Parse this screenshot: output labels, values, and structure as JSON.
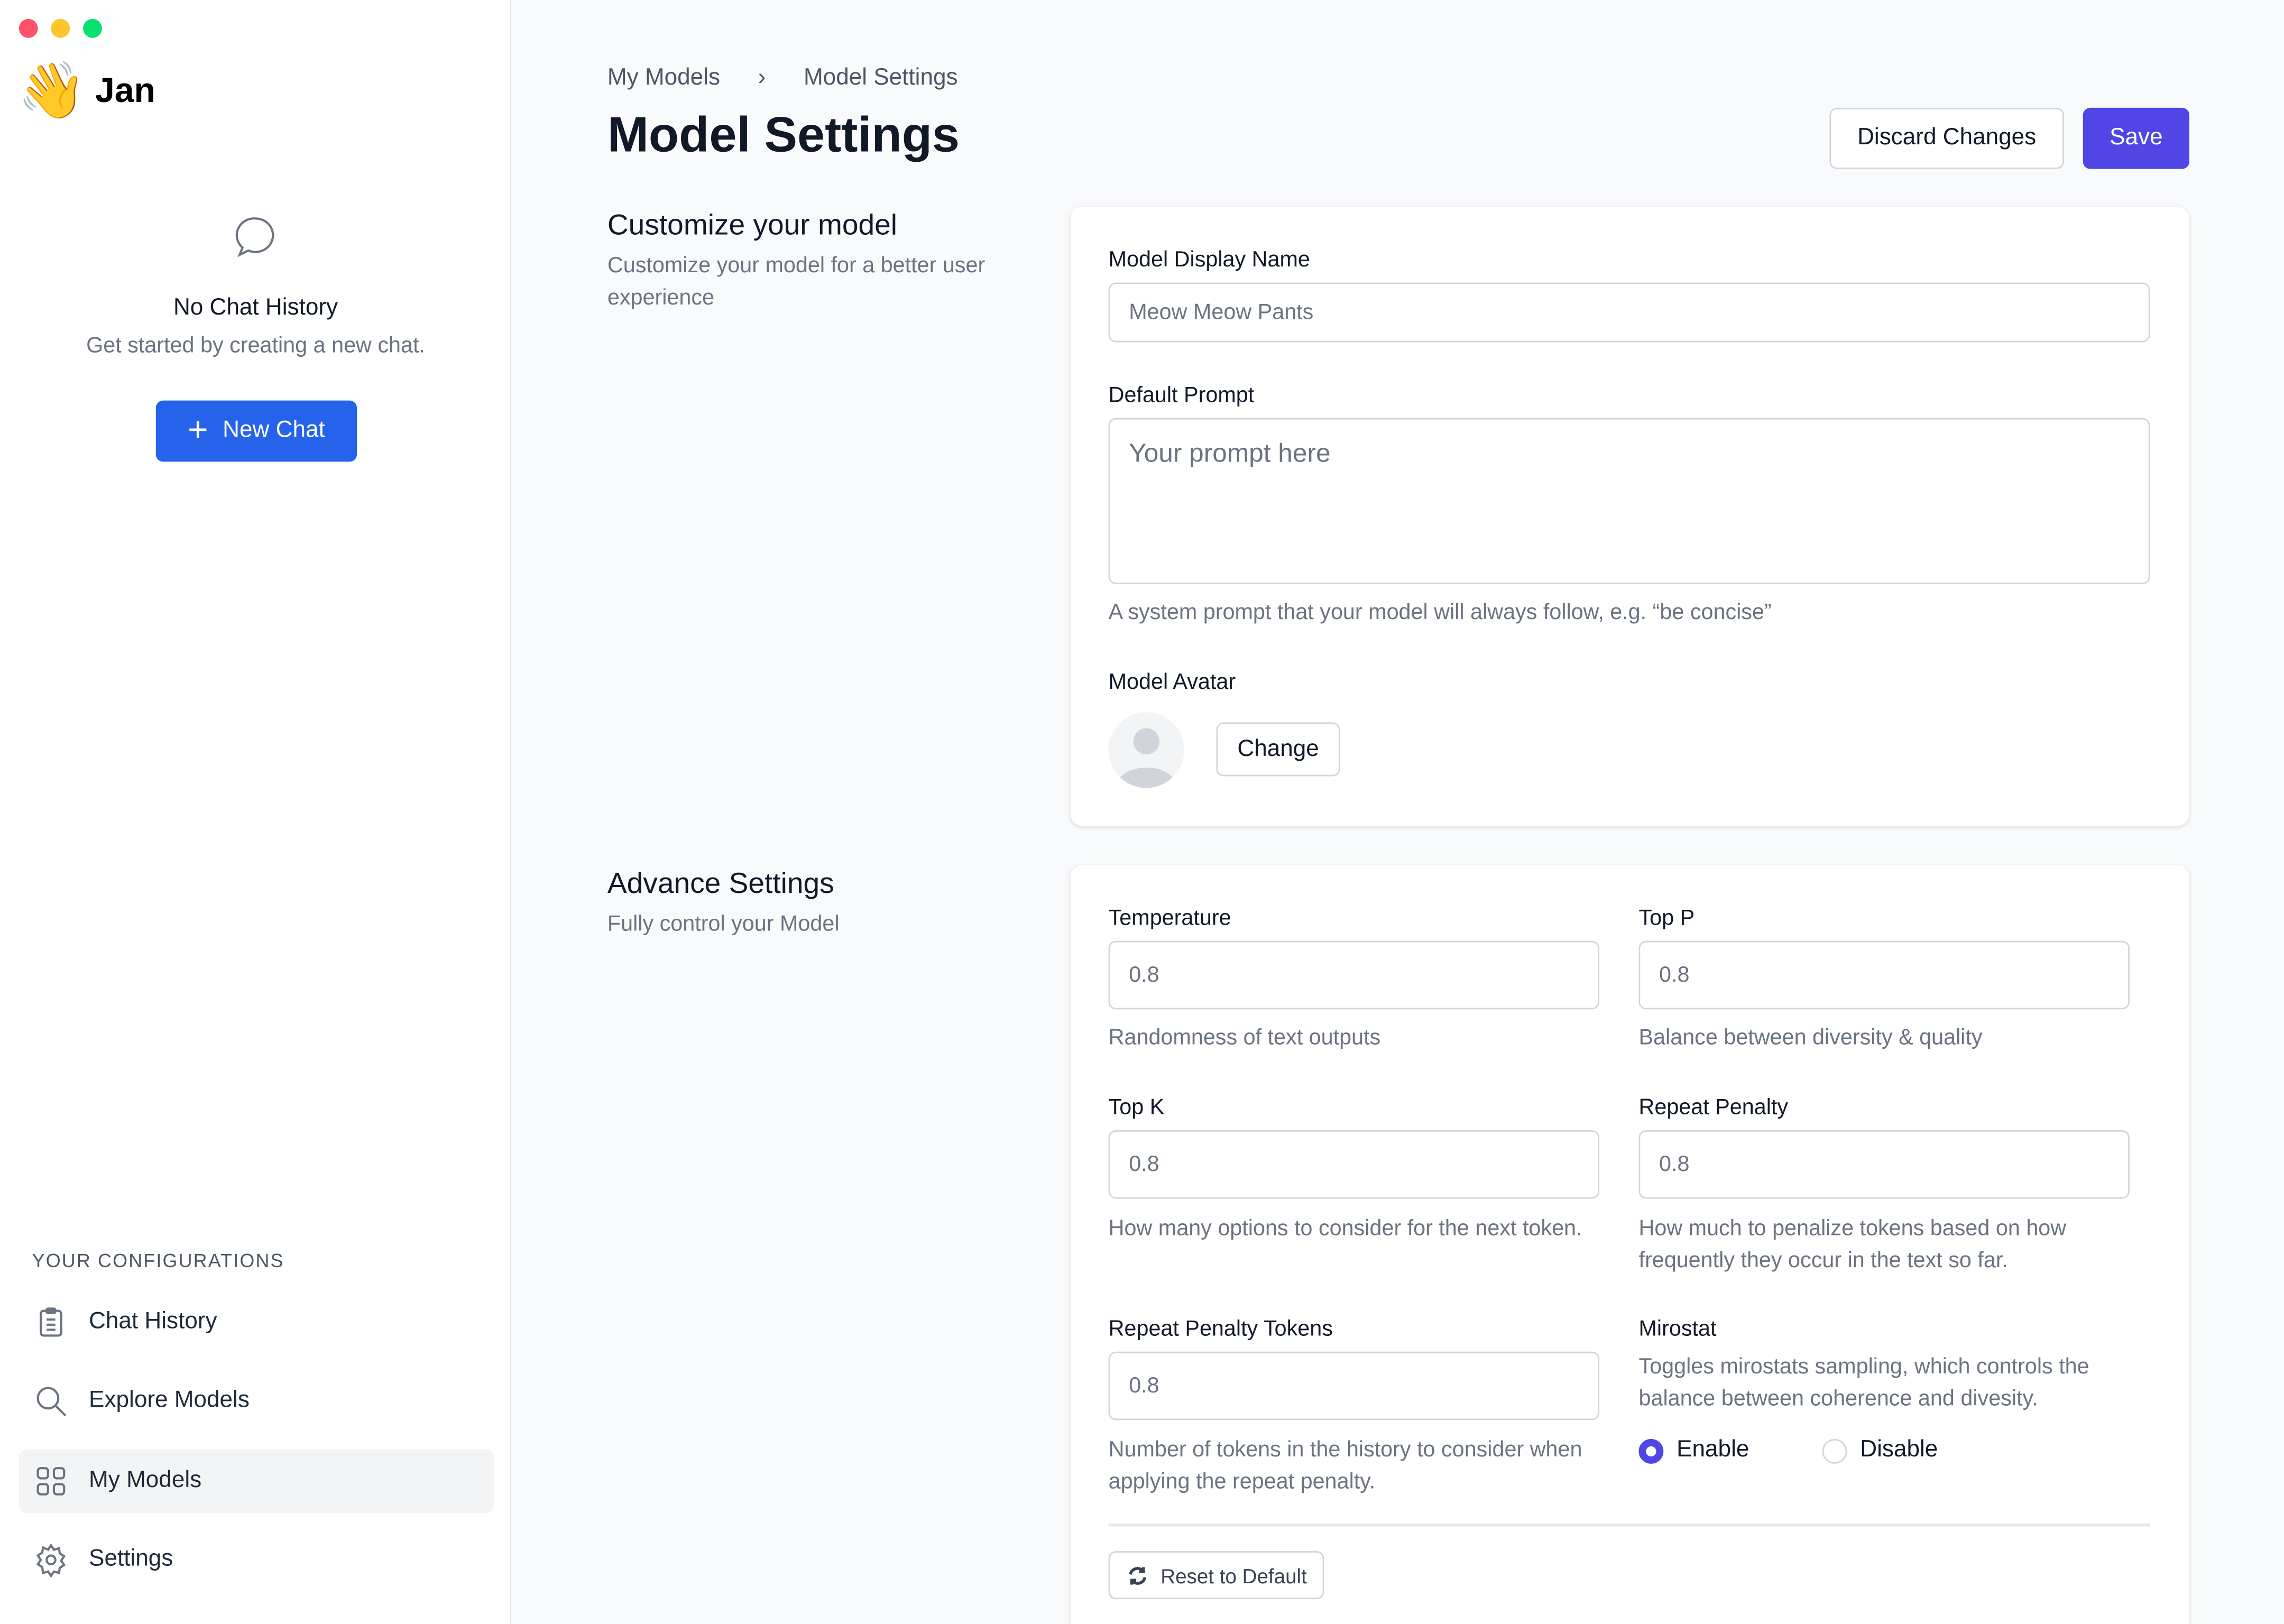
{
  "window": {
    "controls": [
      "#ff5f57",
      "#febc2e",
      "#28c840"
    ]
  },
  "sidebar": {
    "app_name": "Jan",
    "logo_emoji": "👋",
    "empty_title": "No Chat History",
    "empty_subtitle": "Get started by creating a new chat.",
    "new_chat": "New Chat",
    "section_title": "YOUR CONFIGURATIONS",
    "items": [
      {
        "label": "Chat History",
        "icon": "clipboard-icon"
      },
      {
        "label": "Explore Models",
        "icon": "search-icon"
      },
      {
        "label": "My Models",
        "icon": "grid-icon",
        "active": true
      },
      {
        "label": "Settings",
        "icon": "gear-icon"
      }
    ]
  },
  "header": {
    "breadcrumb": [
      "My Models",
      "Model Settings"
    ],
    "title": "Model Settings",
    "discard": "Discard Changes",
    "save": "Save",
    "accent": "#4f46e5"
  },
  "customize": {
    "title": "Customize your model",
    "subtitle": "Customize your model for a better user experience",
    "display_name_label": "Model Display Name",
    "display_name_value": "Meow Meow Pants",
    "prompt_label": "Default Prompt",
    "prompt_placeholder": "Your prompt here",
    "prompt_help": "A system prompt that your model will always follow, e.g. “be concise”",
    "avatar_label": "Model Avatar",
    "change": "Change"
  },
  "advance": {
    "title": "Advance Settings",
    "subtitle": "Fully control your Model",
    "temperature": {
      "label": "Temperature",
      "value": "0.8",
      "help": "Randomness of text outputs"
    },
    "top_p": {
      "label": "Top P",
      "value": "0.8",
      "help": "Balance between diversity & quality"
    },
    "top_k": {
      "label": "Top K",
      "value": "0.8",
      "help": "How many options to consider for the next token."
    },
    "repeat_penalty": {
      "label": "Repeat Penalty",
      "value": "0.8",
      "help": "How much to penalize tokens based on how frequently they occur in the text so far."
    },
    "repeat_penalty_tokens": {
      "label": "Repeat Penalty Tokens",
      "value": "0.8",
      "help": "Number of tokens in the history to consider when applying the repeat penalty."
    },
    "mirostat": {
      "label": "Mirostat",
      "help": "Toggles mirostats sampling, which controls the balance between coherence and divesity.",
      "enable": "Enable",
      "disable": "Disable",
      "selected": "Enable"
    },
    "reset": "Reset to Default"
  }
}
